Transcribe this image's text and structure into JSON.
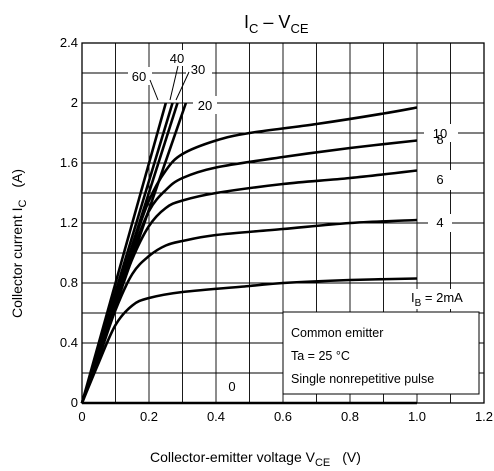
{
  "chart_data": {
    "type": "line",
    "title": {
      "main": "I",
      "sub1": "C",
      "mid": " – V",
      "sub2": "CE"
    },
    "xlabel": {
      "main": "Collector-emitter voltage   V",
      "sub": "CE",
      "unit": "(V)"
    },
    "ylabel": {
      "main": "Collector current   I",
      "sub": "C",
      "unit": "(A)"
    },
    "xlim": [
      0,
      1.2
    ],
    "ylim": [
      0,
      2.4
    ],
    "xticks": [
      "0",
      "0.2",
      "0.4",
      "0.6",
      "0.8",
      "1.0",
      "1.2"
    ],
    "yticks": [
      "0",
      "0.4",
      "0.8",
      "1.2",
      "1.6",
      "2",
      "2.4"
    ],
    "grid": true,
    "series": [
      {
        "name": "0",
        "points": [
          [
            0,
            0
          ],
          [
            1.0,
            0
          ]
        ]
      },
      {
        "name": "IB = 2mA",
        "points": [
          [
            0,
            0
          ],
          [
            0.05,
            0.27
          ],
          [
            0.1,
            0.52
          ],
          [
            0.15,
            0.65
          ],
          [
            0.2,
            0.7
          ],
          [
            0.3,
            0.74
          ],
          [
            0.5,
            0.78
          ],
          [
            0.6,
            0.8
          ],
          [
            0.8,
            0.82
          ],
          [
            1.0,
            0.83
          ]
        ]
      },
      {
        "name": "4",
        "points": [
          [
            0,
            0
          ],
          [
            0.05,
            0.3
          ],
          [
            0.1,
            0.62
          ],
          [
            0.15,
            0.86
          ],
          [
            0.2,
            0.98
          ],
          [
            0.25,
            1.05
          ],
          [
            0.3,
            1.08
          ],
          [
            0.4,
            1.12
          ],
          [
            0.6,
            1.16
          ],
          [
            0.8,
            1.2
          ],
          [
            1.0,
            1.22
          ]
        ]
      },
      {
        "name": "6",
        "points": [
          [
            0,
            0
          ],
          [
            0.05,
            0.32
          ],
          [
            0.1,
            0.66
          ],
          [
            0.15,
            0.96
          ],
          [
            0.2,
            1.18
          ],
          [
            0.25,
            1.3
          ],
          [
            0.3,
            1.35
          ],
          [
            0.4,
            1.4
          ],
          [
            0.6,
            1.46
          ],
          [
            0.8,
            1.5
          ],
          [
            1.0,
            1.55
          ]
        ]
      },
      {
        "name": "8",
        "points": [
          [
            0,
            0
          ],
          [
            0.05,
            0.33
          ],
          [
            0.1,
            0.68
          ],
          [
            0.15,
            1.0
          ],
          [
            0.2,
            1.28
          ],
          [
            0.25,
            1.42
          ],
          [
            0.3,
            1.5
          ],
          [
            0.4,
            1.57
          ],
          [
            0.6,
            1.64
          ],
          [
            0.8,
            1.7
          ],
          [
            1.0,
            1.75
          ]
        ]
      },
      {
        "name": "10",
        "points": [
          [
            0,
            0
          ],
          [
            0.05,
            0.34
          ],
          [
            0.1,
            0.7
          ],
          [
            0.15,
            1.04
          ],
          [
            0.2,
            1.35
          ],
          [
            0.25,
            1.55
          ],
          [
            0.3,
            1.66
          ],
          [
            0.4,
            1.75
          ],
          [
            0.5,
            1.8
          ],
          [
            0.7,
            1.86
          ],
          [
            0.9,
            1.93
          ],
          [
            1.0,
            1.97
          ]
        ]
      },
      {
        "name": "20",
        "points": [
          [
            0,
            0
          ],
          [
            0.31,
            2.0
          ]
        ]
      },
      {
        "name": "30",
        "points": [
          [
            0,
            0
          ],
          [
            0.285,
            2.0
          ]
        ]
      },
      {
        "name": "40",
        "points": [
          [
            0,
            0
          ],
          [
            0.27,
            2.0
          ]
        ]
      },
      {
        "name": "60",
        "points": [
          [
            0,
            0
          ],
          [
            0.25,
            2.0
          ]
        ]
      }
    ],
    "inline_labels": {
      "ib10": "10",
      "ib8": "8",
      "ib6": "6",
      "ib4": "4",
      "ib2_main": "I",
      "ib2_sub": "B",
      "ib2_value": " = 2mA",
      "ib0": "0",
      "ib20": "20",
      "ib30": "30",
      "ib40": "40",
      "ib60": "60"
    },
    "annotation": [
      "Common emitter",
      "Ta = 25 °C",
      "Single nonrepetitive pulse"
    ]
  }
}
